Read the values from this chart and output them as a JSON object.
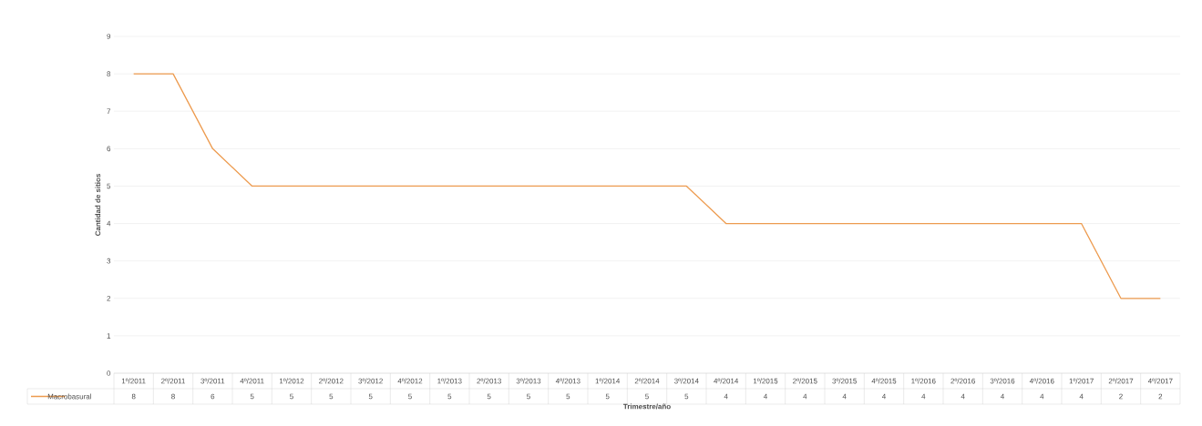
{
  "chart_data": {
    "type": "line",
    "xlabel": "Trimestre/año",
    "ylabel": "Cantidad de sitios",
    "categories": [
      "1º/2011",
      "2º/2011",
      "3º/2011",
      "4º/2011",
      "1º/2012",
      "2º/2012",
      "3º/2012",
      "4º/2012",
      "1º/2013",
      "2º/2013",
      "3º/2013",
      "4º/2013",
      "1º/2014",
      "2º/2014",
      "3º/2014",
      "4º/2014",
      "1º/2015",
      "2º/2015",
      "3º/2015",
      "4º/2015",
      "1º/2016",
      "2º/2016",
      "3º/2016",
      "4º/2016",
      "1º/2017",
      "2º/2017",
      "4º/2017"
    ],
    "series": [
      {
        "name": "Macrobasural",
        "color": "#ed9b4f",
        "values": [
          8,
          8,
          6,
          5,
          5,
          5,
          5,
          5,
          5,
          5,
          5,
          5,
          5,
          5,
          5,
          4,
          4,
          4,
          4,
          4,
          4,
          4,
          4,
          4,
          4,
          2,
          2
        ]
      }
    ],
    "ylim": [
      0,
      9
    ],
    "yticks": [
      0,
      1,
      2,
      3,
      4,
      5,
      6,
      7,
      8,
      9
    ],
    "grid": "y",
    "legend": "bottom left",
    "data_labels": true,
    "line_style": "solid"
  }
}
